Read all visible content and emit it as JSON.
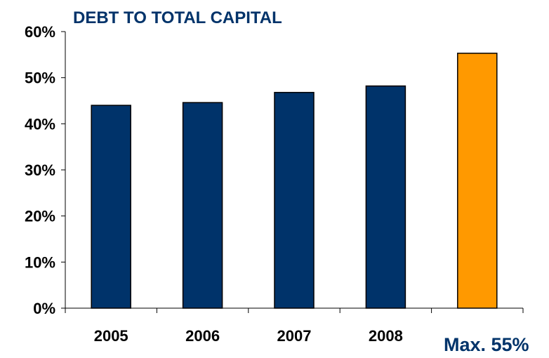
{
  "chart_data": {
    "type": "bar",
    "title": "DEBT TO TOTAL CAPITAL",
    "categories": [
      "2005",
      "2006",
      "2007",
      "2008",
      "Max. 55%"
    ],
    "values": [
      44,
      44.6,
      46.8,
      48.2,
      55.3
    ],
    "bar_colors": [
      "#00336a",
      "#00336a",
      "#00336a",
      "#00336a",
      "#ff9900"
    ],
    "highlight_label_color": "#00336a",
    "y_ticks": [
      "0%",
      "10%",
      "20%",
      "30%",
      "40%",
      "50%",
      "60%"
    ],
    "ylim": [
      0,
      60
    ],
    "grid": false,
    "legend": "none",
    "xlabel": "",
    "ylabel": ""
  }
}
